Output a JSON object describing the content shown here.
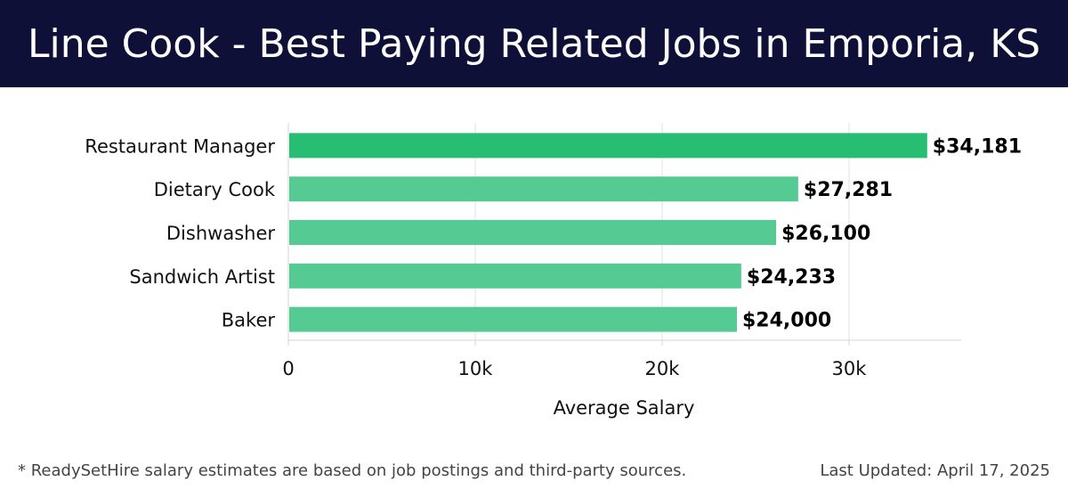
{
  "header": {
    "title": "Line Cook - Best Paying Related Jobs in Emporia, KS"
  },
  "chart_data": {
    "type": "bar",
    "orientation": "horizontal",
    "categories": [
      "Restaurant Manager",
      "Dietary Cook",
      "Dishwasher",
      "Sandwich Artist",
      "Baker"
    ],
    "values": [
      34181,
      27281,
      26100,
      24233,
      24000
    ],
    "value_labels": [
      "$34,181",
      "$27,281",
      "$26,100",
      "$24,233",
      "$24,000"
    ],
    "xlabel": "Average Salary",
    "ylabel": "",
    "xlim": [
      0,
      36000
    ],
    "xticks": [
      0,
      10000,
      20000,
      30000
    ],
    "xtick_labels": [
      "0",
      "10k",
      "20k",
      "30k"
    ],
    "grid": true,
    "colors": {
      "top_bar": "#27bd73",
      "bar": "#55cb93",
      "grid": "#e2e2e2",
      "axis_text": "#111111"
    }
  },
  "footer": {
    "note": "* ReadySetHire salary estimates are based on job postings and third-party sources.",
    "updated": "Last Updated: April 17, 2025"
  },
  "colors": {
    "header_bg": "#0e1038",
    "header_text": "#ffffff",
    "footer_text": "#444444"
  }
}
